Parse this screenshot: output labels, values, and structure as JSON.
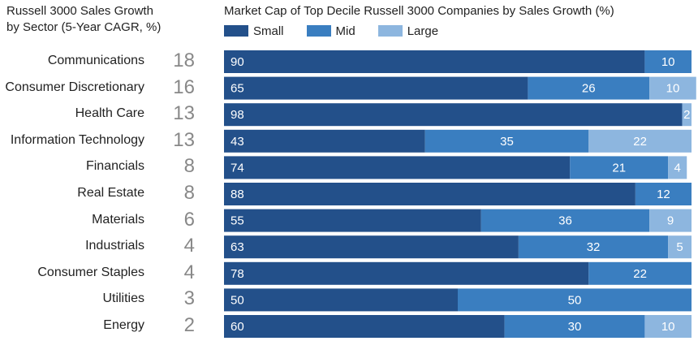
{
  "left_title_line1": "Russell 3000 Sales Growth",
  "left_title_line2": "by Sector (5-Year CAGR, %)",
  "colors": {
    "small": "#23508a",
    "mid": "#3a7ec0",
    "large": "#8db6df"
  },
  "chart_data": [
    {
      "type": "table",
      "title": "Russell 3000 Sales Growth by Sector (5-Year CAGR, %)",
      "categories": [
        "Communications",
        "Consumer Discretionary",
        "Health Care",
        "Information Technology",
        "Financials",
        "Real Estate",
        "Materials",
        "Industrials",
        "Consumer Staples",
        "Utilities",
        "Energy"
      ],
      "values": [
        18,
        16,
        13,
        13,
        8,
        8,
        6,
        4,
        4,
        3,
        2
      ]
    },
    {
      "type": "bar",
      "orientation": "horizontal",
      "stacked": true,
      "title": "Market Cap of Top Decile Russell 3000 Companies by Sales Growth (%)",
      "categories": [
        "Communications",
        "Consumer Discretionary",
        "Health Care",
        "Information Technology",
        "Financials",
        "Real Estate",
        "Materials",
        "Industrials",
        "Consumer Staples",
        "Utilities",
        "Energy"
      ],
      "series": [
        {
          "name": "Small",
          "values": [
            90,
            65,
            98,
            43,
            74,
            88,
            55,
            63,
            78,
            50,
            60
          ]
        },
        {
          "name": "Mid",
          "values": [
            10,
            26,
            0,
            35,
            21,
            12,
            36,
            32,
            22,
            50,
            30
          ]
        },
        {
          "name": "Large",
          "values": [
            0,
            10,
            2,
            22,
            4,
            0,
            9,
            5,
            0,
            0,
            10
          ]
        }
      ],
      "xlim": [
        0,
        100
      ],
      "legend": "top-left"
    }
  ]
}
